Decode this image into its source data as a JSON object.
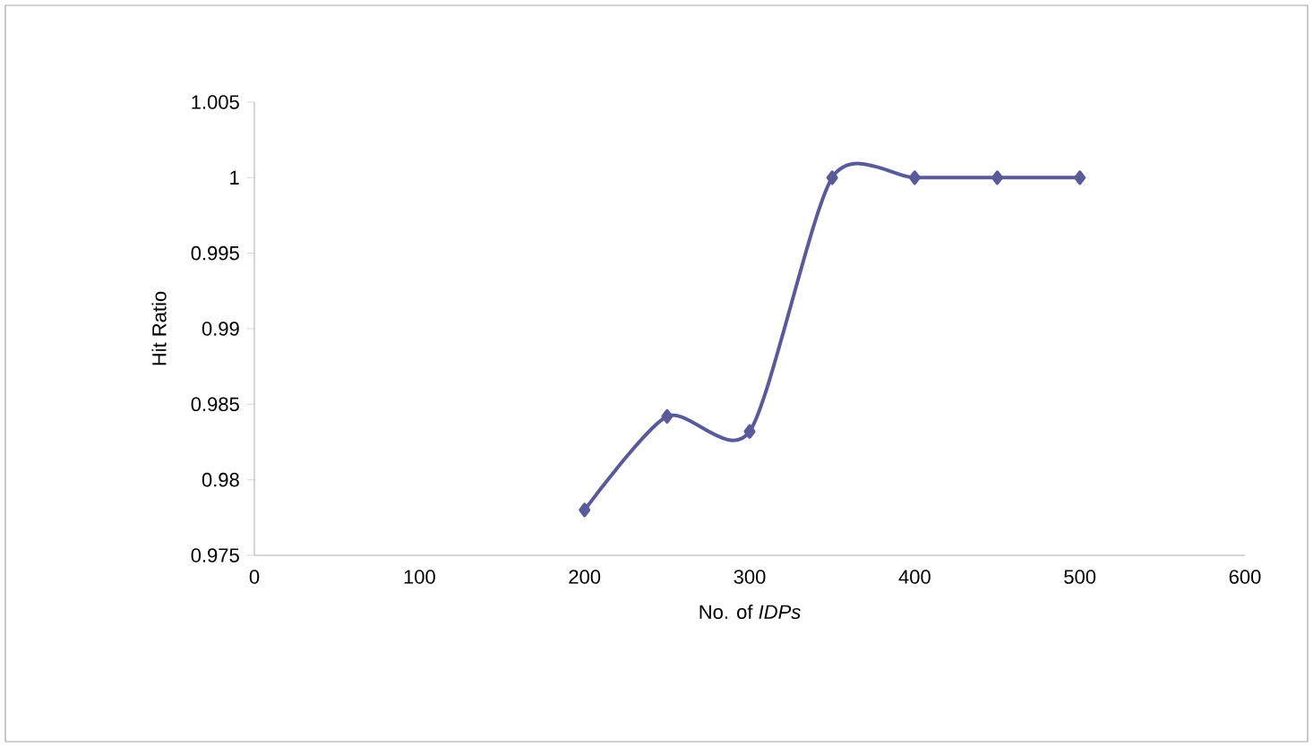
{
  "chart_data": {
    "type": "line",
    "xlabel": "No. of *IDPs*",
    "ylabel": "Hit Ratio",
    "x": [
      200,
      250,
      300,
      350,
      400,
      450,
      500
    ],
    "series": [
      {
        "color": "#5a5a9a",
        "values": [
          0.978,
          0.9842,
          0.9832,
          1.0,
          1.0,
          1.0,
          1.0
        ]
      }
    ],
    "xlim": [
      0,
      600
    ],
    "xticks": [
      0,
      100,
      200,
      300,
      400,
      500,
      600
    ],
    "ylim": [
      0.975,
      1.005
    ],
    "yticks": [
      0.975,
      0.98,
      0.985,
      0.99,
      0.995,
      1,
      1.005
    ],
    "marker": "diamond",
    "line_style": "solid",
    "grid": false
  }
}
